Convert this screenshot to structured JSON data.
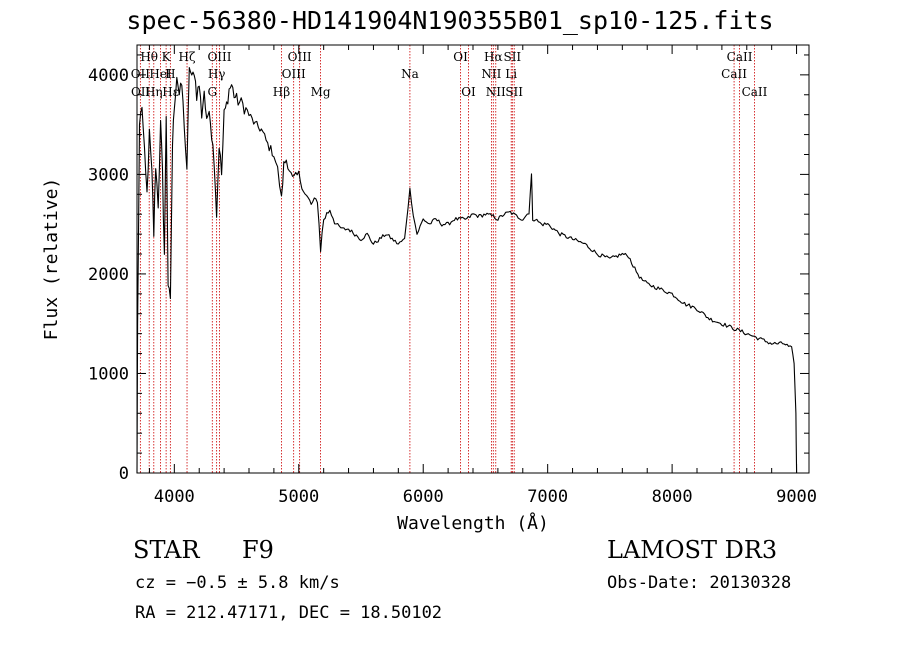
{
  "header": {
    "title": "spec-56380-HD141904N190355B01_sp10-125.fits"
  },
  "footer": {
    "object_class": "STAR",
    "subclass": "F9",
    "survey": "LAMOST DR3",
    "cz": "cz = −0.5 ± 5.8 km/s",
    "obs_date": "Obs-Date: 20130328",
    "coords": "RA = 212.47171, DEC =  18.50102"
  },
  "colors": {
    "spectrum": "#000000",
    "line_markers": "#cc0000",
    "background": "#ffffff"
  },
  "chart_data": {
    "type": "line",
    "title": "spec-56380-HD141904N190355B01_sp10-125.fits",
    "xlabel": "Wavelength (Å)",
    "ylabel": "Flux (relative)",
    "xlim": [
      3700,
      9100
    ],
    "ylim": [
      0,
      4300
    ],
    "xticks": [
      4000,
      5000,
      6000,
      7000,
      8000,
      9000
    ],
    "yticks": [
      0,
      1000,
      2000,
      3000,
      4000
    ],
    "grid": false,
    "series": [
      {
        "x": [
          3700,
          3705,
          3720,
          3740,
          3760,
          3780,
          3800,
          3820,
          3835,
          3850,
          3870,
          3890,
          3905,
          3920,
          3935,
          3950,
          3968,
          3985,
          4000,
          4020,
          4040,
          4060,
          4080,
          4101,
          4120,
          4140,
          4160,
          4180,
          4200,
          4220,
          4240,
          4260,
          4280,
          4300,
          4320,
          4340,
          4360,
          4380,
          4400,
          4420,
          4440,
          4460,
          4480,
          4500,
          4550,
          4600,
          4650,
          4700,
          4750,
          4800,
          4830,
          4861,
          4880,
          4900,
          4950,
          5000,
          5050,
          5100,
          5150,
          5175,
          5200,
          5250,
          5300,
          5350,
          5400,
          5450,
          5500,
          5550,
          5600,
          5650,
          5700,
          5750,
          5800,
          5850,
          5893,
          5920,
          5950,
          6000,
          6050,
          6100,
          6150,
          6200,
          6250,
          6300,
          6350,
          6400,
          6450,
          6500,
          6563,
          6600,
          6650,
          6700,
          6750,
          6800,
          6850,
          6870,
          6880,
          6900,
          6950,
          7000,
          7100,
          7200,
          7300,
          7400,
          7500,
          7600,
          7650,
          7700,
          7750,
          7800,
          7900,
          8000,
          8100,
          8200,
          8300,
          8400,
          8500,
          8600,
          8700,
          8800,
          8900,
          8960,
          8980,
          8995,
          9000
        ],
        "y": [
          0,
          1500,
          3500,
          3700,
          3200,
          2800,
          3400,
          3000,
          2400,
          3100,
          2700,
          3500,
          3000,
          2200,
          3600,
          1900,
          1700,
          3300,
          3700,
          4000,
          3800,
          3900,
          3500,
          3000,
          4100,
          3950,
          4050,
          3800,
          3900,
          3600,
          3850,
          3500,
          3700,
          3400,
          3150,
          2600,
          3300,
          3000,
          3600,
          3700,
          3850,
          3900,
          3800,
          3750,
          3700,
          3600,
          3500,
          3450,
          3300,
          3200,
          3050,
          2750,
          3100,
          3150,
          2950,
          3000,
          2800,
          2700,
          2750,
          2250,
          2550,
          2650,
          2500,
          2450,
          2450,
          2400,
          2350,
          2400,
          2300,
          2350,
          2400,
          2350,
          2300,
          2350,
          2850,
          2600,
          2400,
          2550,
          2500,
          2550,
          2500,
          2500,
          2550,
          2550,
          2550,
          2600,
          2580,
          2600,
          2580,
          2550,
          2600,
          2620,
          2580,
          2550,
          2620,
          3000,
          2550,
          2550,
          2500,
          2500,
          2400,
          2350,
          2300,
          2200,
          2150,
          2200,
          2180,
          2050,
          1950,
          1900,
          1850,
          1800,
          1700,
          1650,
          1550,
          1500,
          1450,
          1400,
          1350,
          1300,
          1300,
          1250,
          1100,
          600,
          0
        ]
      }
    ],
    "line_labels": [
      {
        "label": "Hθ",
        "x": 3798,
        "row": 1
      },
      {
        "label": "OII",
        "x": 3727,
        "row": 2
      },
      {
        "label": "Hη",
        "x": 3835,
        "row": 3
      },
      {
        "label": "OII",
        "x": 3729,
        "row": 3
      },
      {
        "label": "K",
        "x": 3934,
        "row": 1
      },
      {
        "label": "HeI",
        "x": 3889,
        "row": 2
      },
      {
        "label": "Hε",
        "x": 3970,
        "row": 3
      },
      {
        "label": "Hζ",
        "x": 4102,
        "row": 1
      },
      {
        "label": "H",
        "x": 3968,
        "row": 2
      },
      {
        "label": "OIII",
        "x": 4363,
        "row": 1
      },
      {
        "label": "Hγ",
        "x": 4340,
        "row": 2
      },
      {
        "label": "G",
        "x": 4305,
        "row": 3
      },
      {
        "label": "OIII",
        "x": 5007,
        "row": 1
      },
      {
        "label": "OIII",
        "x": 4959,
        "row": 2
      },
      {
        "label": "Hβ",
        "x": 4861,
        "row": 3
      },
      {
        "label": "Mg",
        "x": 5175,
        "row": 3
      },
      {
        "label": "Na",
        "x": 5893,
        "row": 2
      },
      {
        "label": "OI",
        "x": 6300,
        "row": 1
      },
      {
        "label": "OI",
        "x": 6364,
        "row": 3
      },
      {
        "label": "Hα",
        "x": 6563,
        "row": 1
      },
      {
        "label": "NII",
        "x": 6548,
        "row": 2
      },
      {
        "label": "NII",
        "x": 6583,
        "row": 3
      },
      {
        "label": "SII",
        "x": 6716,
        "row": 1
      },
      {
        "label": "Li",
        "x": 6707,
        "row": 2
      },
      {
        "label": "SII",
        "x": 6731,
        "row": 3
      },
      {
        "label": "CaII",
        "x": 8542,
        "row": 1
      },
      {
        "label": "CaII",
        "x": 8498,
        "row": 2
      },
      {
        "label": "CaII",
        "x": 8662,
        "row": 3
      }
    ],
    "marker_lines": [
      3727,
      3798,
      3835,
      3889,
      3934,
      3968,
      4102,
      4305,
      4340,
      4363,
      4861,
      4959,
      5007,
      5175,
      5893,
      6300,
      6364,
      6548,
      6563,
      6583,
      6707,
      6716,
      6731,
      8498,
      8542,
      8662
    ]
  }
}
